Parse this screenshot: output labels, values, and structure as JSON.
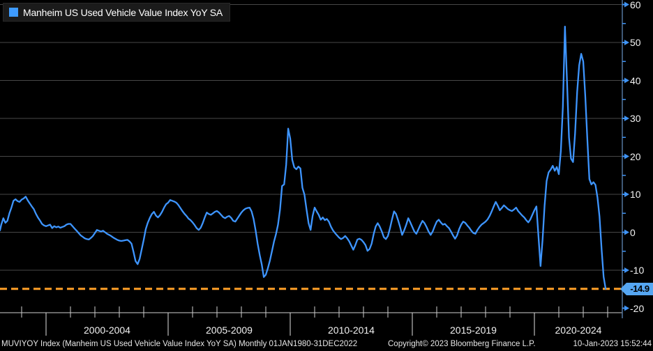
{
  "legend": {
    "label": "Manheim US Used Vehicle Value Index YoY SA"
  },
  "footer": {
    "left": "MUVIYOY Index (Manheim US Used Vehicle Value Index YoY SA)  Monthly 01JAN1980-31DEC2022",
    "copyright": "Copyright© 2023 Bloomberg Finance L.P.",
    "timestamp": "10-Jan-2023 15:52:44"
  },
  "colors": {
    "line": "#3E95FF",
    "legend_swatch": "#3E9BFF",
    "reference_line": "#FFA028",
    "badge_bg": "#55A6F2",
    "axis_line_y": "#53759E",
    "axis_tick_y": "#3F93F5",
    "axis_line_x": "#CFCFCF",
    "grid": "#474747",
    "label_text": "#F2F2F2"
  },
  "chart_data": {
    "type": "line",
    "title": "Manheim US Used Vehicle Value Index YoY SA",
    "ylabel": "",
    "xlabel": "",
    "ylim": [
      -20,
      60
    ],
    "grid": true,
    "legend_position": "top-left",
    "y_ticks": [
      60,
      50,
      40,
      30,
      20,
      10,
      0,
      -10,
      -20
    ],
    "y_minor_ticks": [
      55,
      45,
      35,
      25,
      15,
      5,
      -5,
      -15
    ],
    "x_groups": [
      "2000-2004",
      "2005-2009",
      "2010-2014",
      "2015-2019",
      "2020-2024"
    ],
    "x_group_start_year": 2000,
    "x_group_span_years": 5,
    "x_range_years": [
      1998.08,
      2023.6
    ],
    "reference_line": {
      "value": -14.9,
      "style": "dashed",
      "label": "-14.9"
    },
    "last_point": {
      "date": "Dec 2022",
      "value": -14.9
    },
    "series": [
      {
        "name": "Manheim US Used Vehicle Value Index YoY SA",
        "frequency": "monthly",
        "start": "1998-02",
        "end": "2022-12",
        "values": [
          0.5,
          2.0,
          3.7,
          2.5,
          3.0,
          5.0,
          6.5,
          8.3,
          8.7,
          8.2,
          8.0,
          8.6,
          8.9,
          9.4,
          8.4,
          7.6,
          6.8,
          6.1,
          4.9,
          3.9,
          3.1,
          2.2,
          1.8,
          1.6,
          1.8,
          2.0,
          1.1,
          1.6,
          1.3,
          1.5,
          1.2,
          1.4,
          1.6,
          2.0,
          2.2,
          2.2,
          1.6,
          1.0,
          0.4,
          -0.2,
          -0.8,
          -1.2,
          -1.6,
          -1.8,
          -1.9,
          -1.5,
          -1.0,
          -0.2,
          0.6,
          0.4,
          0.2,
          0.4,
          0.0,
          -0.4,
          -0.7,
          -1.0,
          -1.4,
          -1.7,
          -2.0,
          -2.2,
          -2.3,
          -2.2,
          -2.1,
          -2.0,
          -2.4,
          -3.0,
          -5.2,
          -7.6,
          -8.4,
          -7.0,
          -4.5,
          -2.0,
          0.8,
          2.5,
          3.8,
          4.8,
          5.4,
          4.4,
          3.9,
          4.5,
          5.4,
          6.5,
          7.4,
          7.8,
          8.5,
          8.3,
          8.1,
          7.8,
          7.2,
          6.4,
          5.6,
          4.9,
          4.3,
          3.6,
          3.2,
          2.6,
          1.9,
          1.1,
          0.6,
          1.2,
          2.4,
          3.9,
          5.2,
          4.8,
          4.6,
          5.0,
          5.4,
          5.6,
          5.2,
          4.6,
          4.0,
          3.7,
          4.1,
          4.3,
          3.8,
          3.0,
          2.8,
          3.6,
          4.4,
          5.2,
          5.8,
          6.2,
          6.4,
          6.5,
          5.5,
          3.5,
          0.5,
          -3.0,
          -6.0,
          -8.5,
          -11.8,
          -11.2,
          -9.5,
          -7.5,
          -5.0,
          -2.5,
          -0.5,
          2.0,
          6.0,
          12.2,
          12.6,
          17.8,
          27.3,
          24.7,
          19.1,
          17.1,
          16.6,
          17.3,
          16.8,
          11.7,
          9.9,
          6.1,
          2.4,
          0.6,
          4.3,
          6.5,
          5.5,
          4.6,
          3.3,
          3.9,
          3.2,
          3.5,
          2.8,
          1.5,
          0.5,
          -0.2,
          -0.8,
          -1.4,
          -1.8,
          -1.5,
          -1.0,
          -1.6,
          -2.4,
          -3.5,
          -4.6,
          -3.4,
          -1.9,
          -1.7,
          -2.0,
          -2.6,
          -3.4,
          -4.9,
          -4.4,
          -3.0,
          -0.5,
          1.5,
          2.4,
          1.5,
          0.2,
          -1.3,
          -1.8,
          -1.0,
          1.0,
          3.3,
          5.5,
          4.8,
          3.2,
          1.4,
          -0.7,
          0.5,
          2.0,
          3.7,
          2.6,
          1.4,
          0.2,
          -0.4,
          0.8,
          2.0,
          3.0,
          2.4,
          1.4,
          0.2,
          -0.7,
          0.2,
          1.6,
          2.8,
          3.3,
          2.6,
          2.0,
          2.2,
          1.6,
          1.1,
          0.2,
          -0.8,
          -1.7,
          -0.8,
          0.8,
          2.0,
          2.8,
          2.5,
          1.8,
          1.2,
          0.4,
          -0.2,
          -0.4,
          0.6,
          1.4,
          2.0,
          2.4,
          2.8,
          3.4,
          4.3,
          5.5,
          6.8,
          8.0,
          7.0,
          5.8,
          6.4,
          7.1,
          6.6,
          6.1,
          5.8,
          5.6,
          6.0,
          6.5,
          5.6,
          5.0,
          4.4,
          3.9,
          3.2,
          2.6,
          3.4,
          4.6,
          5.8,
          6.8,
          -1.0,
          -8.9,
          -2.0,
          7.0,
          13.5,
          15.8,
          16.5,
          17.5,
          16.2,
          17.2,
          15.3,
          21.4,
          33.0,
          54.2,
          40.0,
          25.0,
          19.4,
          18.5,
          26.0,
          37.0,
          44.0,
          47.0,
          45.0,
          36.0,
          24.8,
          14.0,
          12.6,
          13.2,
          12.5,
          9.2,
          4.2,
          -4.4,
          -11.7,
          -14.9
        ]
      }
    ]
  }
}
